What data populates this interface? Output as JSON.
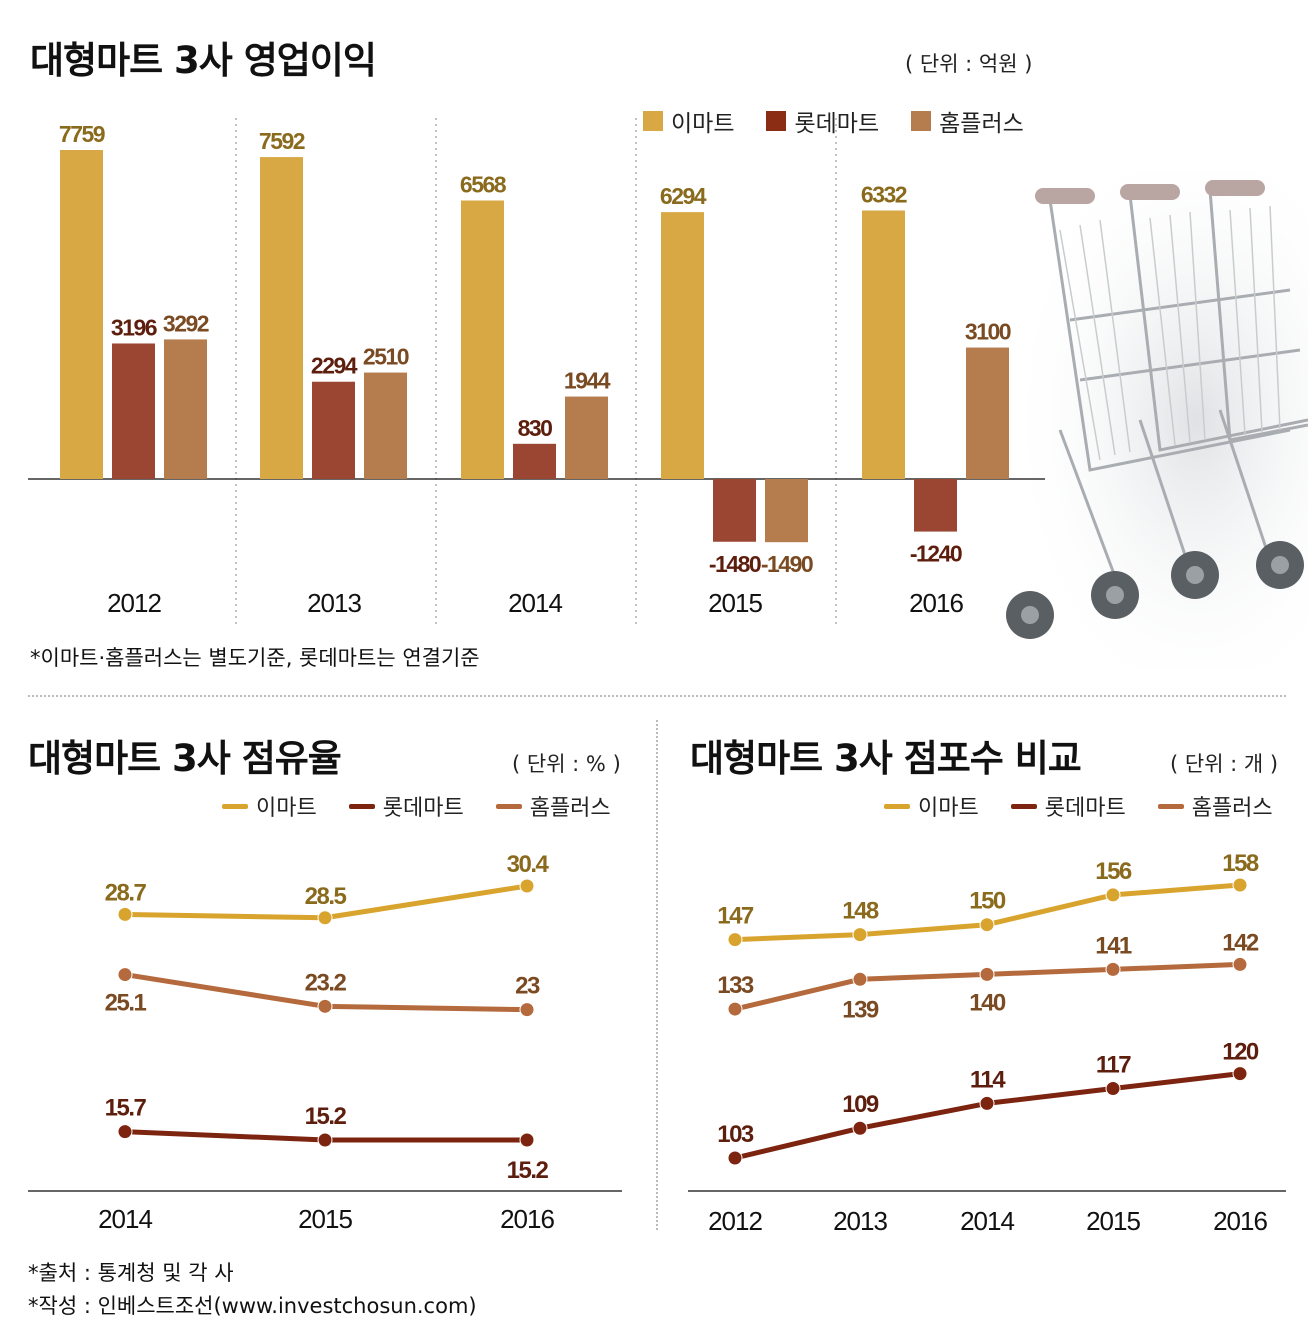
{
  "header": {
    "title": "대형마트 3사 영업이익",
    "unit": "( 단위 : 억원 )"
  },
  "colors": {
    "emart": "#d7a844",
    "lotte": "#9b4632",
    "homeplus": "#b57d4e",
    "emart_line": "#d9a42d",
    "lotte_line": "#7d2410",
    "homeplus_line": "#b46a3c",
    "emart_label": "#8a6a1c",
    "lotte_label": "#5e1e0e",
    "homeplus_label": "#7a4a22"
  },
  "legend": {
    "emart": "이마트",
    "lotte": "롯데마트",
    "homeplus": "홈플러스"
  },
  "footnote_top": "*이마트·홈플러스는 별도기준, 롯데마트는 연결기준",
  "share": {
    "title": "대형마트 3사 점유율",
    "unit": "( 단위 : % )"
  },
  "stores": {
    "title": "대형마트 3사 점포수 비교",
    "unit": "( 단위 : 개 )"
  },
  "footer": {
    "source": "*출처 : 통계청 및 각 사",
    "author": "*작성 : 인베스트조선(www.investchosun.com)"
  },
  "chart_data": [
    {
      "type": "bar",
      "title": "대형마트 3사 영업이익",
      "unit": "억원",
      "categories": [
        "2012",
        "2013",
        "2014",
        "2015",
        "2016"
      ],
      "series": [
        {
          "name": "이마트",
          "values": [
            7759,
            7592,
            6568,
            6294,
            6332
          ]
        },
        {
          "name": "롯데마트",
          "values": [
            3196,
            2294,
            830,
            -1480,
            -1240
          ]
        },
        {
          "name": "홈플러스",
          "values": [
            3292,
            2510,
            1944,
            -1490,
            3100
          ]
        }
      ]
    },
    {
      "type": "line",
      "title": "대형마트 3사 점유율",
      "unit": "%",
      "x": [
        "2014",
        "2015",
        "2016"
      ],
      "series": [
        {
          "name": "이마트",
          "values": [
            28.7,
            28.5,
            30.4
          ]
        },
        {
          "name": "롯데마트",
          "values": [
            15.7,
            15.2,
            15.2
          ]
        },
        {
          "name": "홈플러스",
          "values": [
            25.1,
            23.2,
            23.0
          ]
        }
      ]
    },
    {
      "type": "line",
      "title": "대형마트 3사 점포수 비교",
      "unit": "개",
      "x": [
        "2012",
        "2013",
        "2014",
        "2015",
        "2016"
      ],
      "series": [
        {
          "name": "이마트",
          "values": [
            147,
            148,
            150,
            156,
            158
          ]
        },
        {
          "name": "롯데마트",
          "values": [
            103,
            109,
            114,
            117,
            120
          ]
        },
        {
          "name": "홈플러스",
          "values": [
            133,
            139,
            140,
            141,
            142
          ]
        }
      ]
    }
  ]
}
